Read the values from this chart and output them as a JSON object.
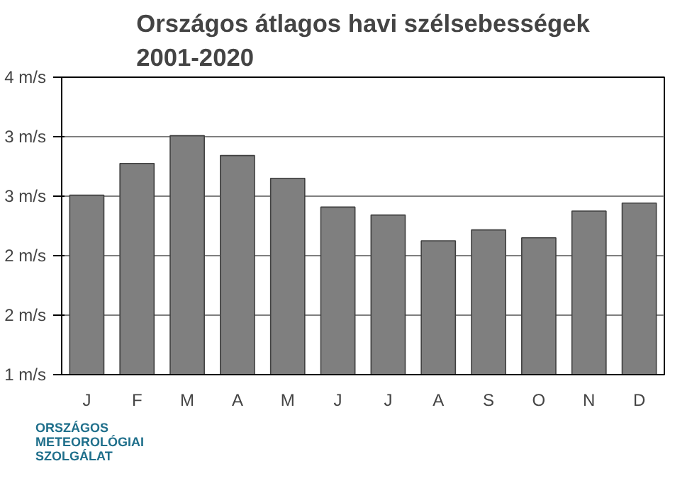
{
  "chart_data": {
    "type": "bar",
    "title": "Országos átlagos havi szélsebességek\n2001-2020",
    "categories": [
      "J",
      "F",
      "M",
      "A",
      "M",
      "J",
      "J",
      "A",
      "S",
      "O",
      "N",
      "D"
    ],
    "values": [
      2.81,
      3.13,
      3.41,
      3.21,
      2.98,
      2.69,
      2.61,
      2.35,
      2.46,
      2.38,
      2.65,
      2.73
    ],
    "color": "#7f7f7f",
    "ylim": [
      1,
      4
    ],
    "yticks": [
      {
        "value": 1,
        "label": "1 m/s"
      },
      {
        "value": 1.6,
        "label": "2 m/s"
      },
      {
        "value": 2.2,
        "label": "2 m/s"
      },
      {
        "value": 2.8,
        "label": "3 m/s"
      },
      {
        "value": 3.4,
        "label": "3 m/s"
      },
      {
        "value": 4,
        "label": "4 m/s"
      }
    ],
    "grid": "y",
    "annotations": [
      "ORSZÁGOS\nMETEOROLÓGIAI\nSZOLGÁLAT"
    ]
  }
}
